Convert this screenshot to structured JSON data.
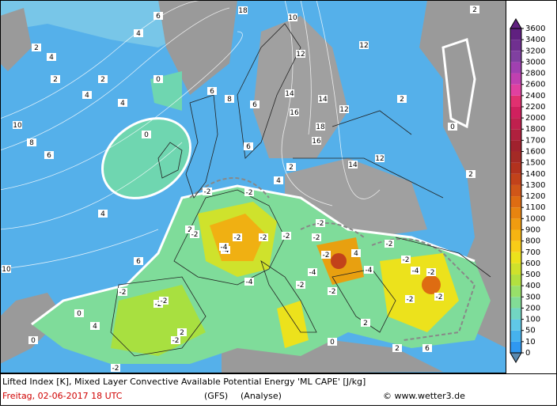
{
  "map": {
    "labels": [
      "2",
      "4",
      "4",
      "2",
      "6",
      "10",
      "8",
      "6",
      "4",
      "4",
      "2",
      "0",
      "0",
      "2",
      "4",
      "6",
      "18",
      "10",
      "12",
      "14",
      "16",
      "12",
      "14",
      "12",
      "16",
      "18",
      "14",
      "12",
      "2",
      "0",
      "2",
      "2",
      "6",
      "8",
      "6",
      "-2",
      "-2",
      "-4",
      "-2",
      "-2",
      "-2",
      "-4",
      "-2",
      "-2",
      "-4",
      "-2",
      "-2",
      "-2",
      "-4",
      "-2",
      "-2",
      "-2",
      "-4",
      "-2",
      "-2",
      "-2",
      "-2",
      "-2",
      "-2",
      "0",
      "0",
      "2",
      "2",
      "4",
      "-2",
      "0",
      "2",
      "4",
      "6",
      "10",
      "-4",
      "-2",
      "6",
      "4",
      "2"
    ]
  },
  "legend": {
    "labels": [
      "0",
      "10",
      "50",
      "100",
      "200",
      "300",
      "400",
      "500",
      "600",
      "700",
      "800",
      "900",
      "1000",
      "1100",
      "1200",
      "1300",
      "1400",
      "1500",
      "1600",
      "1700",
      "1800",
      "2000",
      "2200",
      "2400",
      "2600",
      "2800",
      "3000",
      "3200",
      "3400",
      "3600"
    ],
    "colors": [
      "#2f98f0",
      "#46b2ee",
      "#60c8e6",
      "#72d6c2",
      "#82dc96",
      "#98e06a",
      "#b2e040",
      "#cfe22c",
      "#ece21c",
      "#f8cc18",
      "#f6b412",
      "#f09c10",
      "#e88410",
      "#de6c12",
      "#d05618",
      "#c2421a",
      "#b2321e",
      "#a42a26",
      "#a0222e",
      "#b0203e",
      "#c0204e",
      "#d0205e",
      "#e03070",
      "#e040a0",
      "#c040b0",
      "#a040b0",
      "#8040a0",
      "#703090",
      "#602080"
    ]
  },
  "footer": {
    "line1": "Lifted Index [K], Mixed Layer Convective Available Potential Energy 'ML CAPE' [J/kg]",
    "date": "Freitag, 02-06-2017  18 UTC",
    "model": "(GFS)",
    "run": "(Analyse)",
    "credit": "© www.wetter3.de"
  }
}
